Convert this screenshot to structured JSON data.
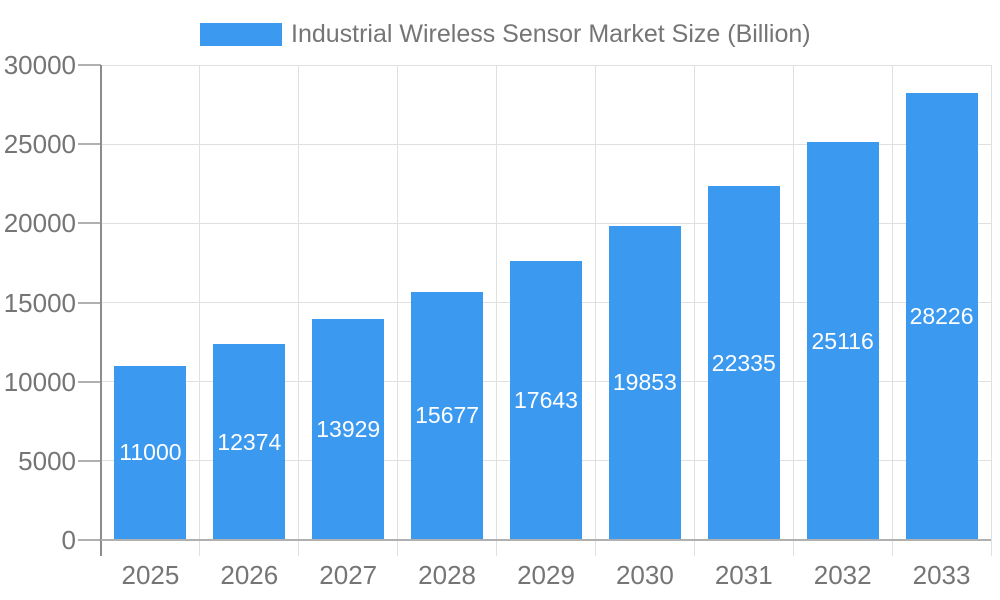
{
  "chart_data": {
    "type": "bar",
    "title": "Industrial Wireless Sensor Market Size (Billion)",
    "legend": {
      "position": "top",
      "label": "Industrial Wireless Sensor Market Size (Billion)"
    },
    "categories": [
      "2025",
      "2026",
      "2027",
      "2028",
      "2029",
      "2030",
      "2031",
      "2032",
      "2033"
    ],
    "series": [
      {
        "name": "Industrial Wireless Sensor Market Size (Billion)",
        "values": [
          11000,
          12374,
          13929,
          15677,
          17643,
          19853,
          22335,
          25116,
          28226
        ]
      }
    ],
    "xlabel": "",
    "ylabel": "",
    "ylim": [
      0,
      30000
    ],
    "ytick_step": 5000,
    "yticks": [
      0,
      5000,
      10000,
      15000,
      20000,
      25000,
      30000
    ],
    "grid": "on",
    "value_labels": "inside-center",
    "colors": {
      "bar": "#3B99F0",
      "bar_label_text": "#FFFFFF",
      "grid_line": "#E0E0E0",
      "y_axis_line": "#8C8C8C",
      "x_axis_line": "#B0B0B0",
      "tick_mark": "#B0B0B0",
      "axis_text": "#757575",
      "legend_text": "#757575",
      "background": "#FFFFFF"
    }
  }
}
